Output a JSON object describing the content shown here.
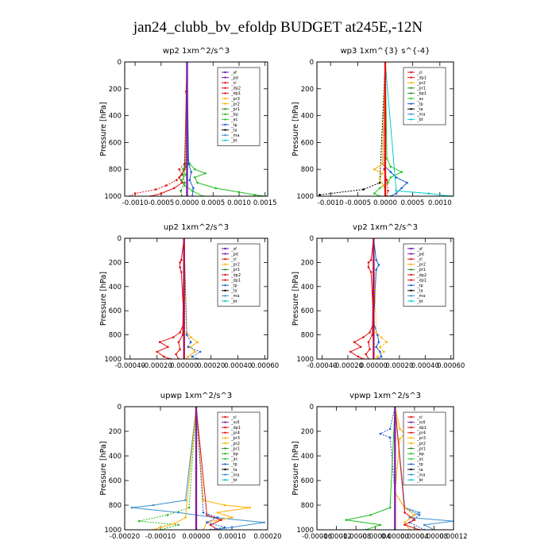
{
  "title": "jan24_clubb_bv_efoldp  BUDGET at245E,-12N",
  "colors": {
    "_sf": "#6a0dad",
    "_pd": "#7a1fa2",
    "_cl": "#e01010",
    "_dp2": "#e01010",
    "_dp1": "#e01010",
    "_pr3": "#ffb000",
    "_pr2": "#ffb000",
    "_pr1": "#2e8b2e",
    "_bp": "#22bb22",
    "_ac": "#22cc22",
    "_tp": "#1f5fd0",
    "_ta": "#000000",
    "_ma": "#3a8fd0",
    "_bt": "#00cccc",
    "_mfl": "#7a1fa2",
    "_pr4": "#e01010",
    "_bp1": "#2e8b2e",
    "_dp": "#e01010",
    "_dpf": "#e01010"
  },
  "chart_data": [
    {
      "type": "line",
      "title": "wp2   1xm^2/s^3",
      "ylabel": "Pressure  [hPa]",
      "xlim": [
        -0.0012,
        0.00155
      ],
      "ylim": [
        1000,
        0
      ],
      "xticks": [
        -0.001,
        -0.0005,
        0.0,
        0.0005,
        0.001,
        0.0015
      ],
      "xtick_labels": [
        "-0.0010",
        "-0.0005",
        "0.0000",
        "0.0005",
        "0.0010",
        "0.0015"
      ],
      "yticks": [
        0,
        200,
        400,
        600,
        800,
        1000
      ],
      "legend": [
        "_sf",
        "_pd",
        "_cl",
        "_dp2",
        "_dp1",
        "_pr3",
        "_pr2",
        "_pr1",
        "_bp",
        "_ac",
        "_tp",
        "_ta",
        "_ma",
        "_bt"
      ],
      "series": [
        {
          "name": "_bp",
          "pressure": [
            0,
            700,
            760,
            800,
            830,
            860,
            900,
            940,
            970,
            990,
            1000
          ],
          "values": [
            0,
            0,
            5e-05,
            0.00015,
            0.00035,
            0.00015,
            0.0002,
            0.00055,
            0.001,
            0.0013,
            0.0015
          ]
        },
        {
          "name": "_ac",
          "pressure": [
            0,
            740,
            800,
            840,
            880,
            920,
            960,
            1000
          ],
          "values": [
            0,
            0,
            -8e-05,
            -3e-05,
            -0.0001,
            -5e-05,
            0.0001,
            0.0003
          ]
        },
        {
          "name": "_dp1",
          "pressure": [
            0,
            220,
            700,
            760,
            800,
            840,
            880,
            920,
            950,
            980,
            1000
          ],
          "values": [
            0,
            -2e-05,
            0,
            -5e-05,
            -0.00015,
            -0.0001,
            -0.0002,
            -0.0004,
            -0.0006,
            -0.001,
            -0.0011
          ]
        },
        {
          "name": "_dp2",
          "pressure": [
            0,
            800,
            860,
            900,
            940,
            980,
            1000
          ],
          "values": [
            0,
            -5e-05,
            -0.00015,
            -0.0001,
            -0.00025,
            -0.0005,
            -0.0007
          ]
        },
        {
          "name": "_tp",
          "pressure": [
            0,
            760,
            820,
            880,
            940,
            1000
          ],
          "values": [
            0,
            3e-05,
            8e-05,
            5e-05,
            0.00012,
            0.0001
          ]
        },
        {
          "name": "_pr1",
          "pressure": [
            0,
            780,
            840,
            900,
            960,
            1000
          ],
          "values": [
            0,
            -3e-05,
            -8e-05,
            -5e-05,
            -0.00012,
            -0.0001
          ]
        },
        {
          "name": "_sf",
          "pressure": [
            0,
            500,
            1000
          ],
          "values": [
            0,
            0,
            0
          ]
        },
        {
          "name": "_pd",
          "pressure": [
            0,
            500,
            1000
          ],
          "values": [
            0,
            0,
            0
          ]
        }
      ]
    },
    {
      "type": "line",
      "title": "wp3   1xm^{3} s^{-4}",
      "ylabel": "Pressure  [hPa]",
      "xlim": [
        -0.00125,
        0.00125
      ],
      "ylim": [
        1000,
        0
      ],
      "xticks": [
        -0.001,
        -0.0005,
        0.0,
        0.0005,
        0.001
      ],
      "xtick_labels": [
        "-0.0010",
        "-0.0005",
        "0.0000",
        "0.0005",
        "0.0010"
      ],
      "yticks": [
        0,
        200,
        400,
        600,
        800,
        1000
      ],
      "legend": [
        "_cl",
        "_dp1",
        "_pr2",
        "_pr1",
        "_bp1",
        "_ac",
        "_tp",
        "_ta",
        "_ma",
        "_bt"
      ],
      "series": [
        {
          "name": "_ac",
          "pressure": [
            0,
            720,
            780,
            820,
            860,
            900,
            940,
            980,
            1000
          ],
          "values": [
            0,
            3e-05,
            0.0001,
            0.0003,
            0.0001,
            5e-05,
            -0.0001,
            -0.0002,
            -0.0001
          ]
        },
        {
          "name": "_tp",
          "pressure": [
            0,
            760,
            820,
            860,
            900,
            940,
            980,
            1000
          ],
          "values": [
            0,
            -5e-05,
            0.0001,
            0.0002,
            0.0004,
            0.0003,
            0.0002,
            0.0001
          ]
        },
        {
          "name": "_ta",
          "pressure": [
            0,
            900,
            950,
            990,
            1000
          ],
          "values": [
            0,
            -0.0001,
            -0.0004,
            -0.0012,
            -0.0012
          ]
        },
        {
          "name": "_pr2",
          "pressure": [
            0,
            760,
            800,
            830,
            870,
            920,
            1000
          ],
          "values": [
            0,
            -5e-05,
            -0.0002,
            -5e-05,
            -0.0001,
            -3e-05,
            2e-05
          ]
        },
        {
          "name": "_bt",
          "pressure": [
            0,
            960,
            980,
            1000
          ],
          "values": [
            0,
            0.0002,
            0.0008,
            0.0012
          ]
        },
        {
          "name": "_dp1",
          "pressure": [
            0,
            800,
            880,
            960,
            1000
          ],
          "values": [
            0,
            -2e-05,
            3e-05,
            5e-05,
            3e-05
          ]
        },
        {
          "name": "_cl",
          "pressure": [
            0,
            500,
            1000
          ],
          "values": [
            0,
            0,
            0
          ]
        }
      ]
    },
    {
      "type": "line",
      "title": "up2   1xm^2/s^3",
      "ylabel": "Pressure  [hPa]",
      "xlim": [
        -0.00044,
        0.00062
      ],
      "ylim": [
        1000,
        0
      ],
      "xticks": [
        -0.0004,
        -0.0002,
        0.0,
        0.0002,
        0.0004,
        0.0006
      ],
      "xtick_labels": [
        "-0.00040",
        "-0.00020",
        "0.00000",
        "0.00020",
        "0.00040",
        "0.00060"
      ],
      "yticks": [
        0,
        200,
        400,
        600,
        800,
        1000
      ],
      "legend": [
        "_sf",
        "_pd",
        "_cl",
        "_pr2",
        "_pr1",
        "_dp2",
        "_dp1",
        "_tp",
        "_ta",
        "_ma",
        "_bt"
      ],
      "series": [
        {
          "name": "_dp1",
          "pressure": [
            0,
            180,
            200,
            240,
            280,
            700,
            780,
            820,
            860,
            900,
            940,
            980,
            1000
          ],
          "values": [
            0,
            -2e-05,
            -3e-05,
            -3e-05,
            -2e-05,
            0,
            -3e-05,
            -8e-05,
            -0.00018,
            -0.00012,
            -0.0002,
            -0.00015,
            -0.0001
          ]
        },
        {
          "name": "_pr2",
          "pressure": [
            0,
            780,
            820,
            860,
            900,
            940,
            980,
            1000
          ],
          "values": [
            0,
            2e-05,
            5e-05,
            0.0001,
            5e-05,
            8e-05,
            3e-05,
            2e-05
          ]
        },
        {
          "name": "_tp",
          "pressure": [
            0,
            800,
            860,
            900,
            940,
            980,
            1000
          ],
          "values": [
            0,
            2e-05,
            5e-05,
            3e-05,
            0.00012,
            6e-05,
            0.0001
          ]
        },
        {
          "name": "_dp2",
          "pressure": [
            0,
            800,
            860,
            920,
            960,
            1000
          ],
          "values": [
            0,
            -1e-05,
            -4e-05,
            -3e-05,
            -6e-05,
            -4e-05
          ]
        },
        {
          "name": "_sf",
          "pressure": [
            0,
            500,
            1000
          ],
          "values": [
            0,
            0,
            0
          ]
        },
        {
          "name": "_cl",
          "pressure": [
            0,
            500,
            1000
          ],
          "values": [
            0,
            0,
            0
          ]
        }
      ]
    },
    {
      "type": "line",
      "title": "vp2   1xm^2/s^3",
      "ylabel": "Pressure  [hPa]",
      "xlim": [
        -0.00044,
        0.00062
      ],
      "ylim": [
        1000,
        0
      ],
      "xticks": [
        -0.0004,
        -0.0002,
        0.0,
        0.0002,
        0.0004,
        0.0006
      ],
      "xtick_labels": [
        "-0.00040",
        "-0.00020",
        "0.00000",
        "0.00020",
        "0.00040",
        "0.00060"
      ],
      "yticks": [
        0,
        200,
        400,
        600,
        800,
        1000
      ],
      "legend": [
        "_sf",
        "_pd",
        "_cl",
        "_pr2",
        "_pr1",
        "_dp2",
        "_dp1",
        "_tp",
        "_ta",
        "_ma",
        "_bt"
      ],
      "series": [
        {
          "name": "_dp1",
          "pressure": [
            0,
            180,
            200,
            240,
            280,
            700,
            780,
            820,
            860,
            900,
            940,
            980,
            1000
          ],
          "values": [
            0,
            -2e-05,
            -4e-05,
            -4e-05,
            -2e-05,
            0,
            -3e-05,
            -8e-05,
            -0.00015,
            -0.0001,
            -0.00018,
            -0.00012,
            -8e-05
          ]
        },
        {
          "name": "_tp",
          "pressure": [
            0,
            180,
            220,
            260,
            700,
            800,
            860,
            900,
            940,
            980,
            1000
          ],
          "values": [
            0,
            2e-05,
            4e-05,
            2e-05,
            0,
            3e-05,
            4e-05,
            2e-05,
            5e-05,
            6e-05,
            3e-05
          ]
        },
        {
          "name": "_pr2",
          "pressure": [
            0,
            780,
            820,
            860,
            900,
            940,
            980,
            1000
          ],
          "values": [
            0,
            2e-05,
            6e-05,
            0.0001,
            5e-05,
            8e-05,
            3e-05,
            2e-05
          ]
        },
        {
          "name": "_dp2",
          "pressure": [
            0,
            800,
            860,
            920,
            960,
            1000
          ],
          "values": [
            0,
            -1e-05,
            -4e-05,
            -3e-05,
            -6e-05,
            -4e-05
          ]
        },
        {
          "name": "_sf",
          "pressure": [
            0,
            500,
            1000
          ],
          "values": [
            0,
            0,
            0
          ]
        },
        {
          "name": "_cl",
          "pressure": [
            0,
            500,
            1000
          ],
          "values": [
            0,
            0,
            0
          ]
        }
      ]
    },
    {
      "type": "line",
      "title": "upwp   1xm^2/s^3",
      "ylabel": "Pressure  [hPa]",
      "xlim": [
        -0.0002,
        0.0002
      ],
      "ylim": [
        1000,
        0
      ],
      "xticks": [
        -0.0002,
        -0.0001,
        0.0,
        0.0001,
        0.0002
      ],
      "xtick_labels": [
        "-0.00020",
        "-0.00010",
        "0.00000",
        "0.00010",
        "0.00020"
      ],
      "yticks": [
        0,
        200,
        400,
        600,
        800,
        1000
      ],
      "legend": [
        "_cl",
        "_mfl",
        "_dp1",
        "_pr4",
        "_pr3",
        "_pr2",
        "_pr1",
        "_bp",
        "_ac",
        "_tp",
        "_ta",
        "_ma",
        "_bt"
      ],
      "series": [
        {
          "name": "_ma",
          "pressure": [
            0,
            760,
            800,
            820,
            860,
            900,
            940,
            980,
            1000
          ],
          "values": [
            0,
            -3e-05,
            -0.00012,
            -0.00018,
            -5e-05,
            5e-05,
            0.00019,
            0.0001,
            5e-05
          ]
        },
        {
          "name": "_pr2",
          "pressure": [
            0,
            760,
            800,
            820,
            860,
            900,
            940,
            1000
          ],
          "values": [
            0,
            2e-05,
            8e-05,
            0.00015,
            6e-05,
            0.0001,
            3e-05,
            2e-05
          ]
        },
        {
          "name": "_bp",
          "pressure": [
            0,
            820,
            880,
            930,
            960,
            1000
          ],
          "values": [
            0,
            -2e-05,
            -8e-05,
            -0.00016,
            -5e-05,
            -0.0001
          ]
        },
        {
          "name": "_pr3",
          "pressure": [
            0,
            900,
            950,
            980,
            1000
          ],
          "values": [
            0,
            -3e-05,
            -6e-05,
            -0.0001,
            -0.00012
          ]
        },
        {
          "name": "_dp1",
          "pressure": [
            0,
            880,
            920,
            960,
            1000
          ],
          "values": [
            0,
            3e-05,
            7e-05,
            4e-05,
            6e-05
          ]
        },
        {
          "name": "_tp",
          "pressure": [
            0,
            860,
            900,
            940,
            980,
            1000
          ],
          "values": [
            0,
            2e-05,
            6e-05,
            3e-05,
            8e-05,
            4e-05
          ]
        },
        {
          "name": "_cl",
          "pressure": [
            0,
            500,
            1000
          ],
          "values": [
            0,
            0,
            0
          ]
        },
        {
          "name": "_mfl",
          "pressure": [
            0,
            500,
            1000
          ],
          "values": [
            0,
            0,
            0
          ]
        }
      ]
    },
    {
      "type": "line",
      "title": "vpwp   1xm^2/s^3",
      "ylabel": "Pressure  [hPa]",
      "xlim": [
        -0.00016,
        0.00012
      ],
      "ylim": [
        1000,
        0
      ],
      "xticks": [
        -0.00016,
        -0.00012,
        -8e-05,
        -4e-05,
        0.0,
        4e-05,
        8e-05,
        0.00012
      ],
      "xtick_labels": [
        "-0.00016",
        "-0.00012",
        "-0.00008",
        "-0.00004",
        "0.00000",
        "0.00004",
        "0.00008",
        "0.00012"
      ],
      "yticks": [
        0,
        200,
        400,
        600,
        800,
        1000
      ],
      "legend": [
        "_cl",
        "_mfl",
        "_dp1",
        "_pr4",
        "_pr3",
        "_pr2",
        "_pr1",
        "_bp",
        "_ac",
        "_tp",
        "_ta",
        "_ma",
        "_bt"
      ],
      "series": [
        {
          "name": "_bp",
          "pressure": [
            0,
            820,
            880,
            920,
            960,
            1000
          ],
          "values": [
            0,
            -1e-05,
            -5e-05,
            -0.0001,
            -3e-05,
            -6e-05
          ]
        },
        {
          "name": "_ma",
          "pressure": [
            0,
            820,
            860,
            900,
            930,
            960,
            1000
          ],
          "values": [
            0,
            2e-05,
            5e-05,
            3e-05,
            0.00012,
            6e-05,
            8e-05
          ]
        },
        {
          "name": "_tp",
          "pressure": [
            0,
            180,
            220,
            250,
            700,
            820,
            880,
            940,
            1000
          ],
          "values": [
            0,
            -1e-05,
            -3e-05,
            -1e-05,
            0,
            2e-05,
            5e-05,
            3e-05,
            6e-05
          ]
        },
        {
          "name": "_pr2",
          "pressure": [
            0,
            180,
            220,
            260,
            700,
            820,
            880,
            940,
            1000
          ],
          "values": [
            0,
            1e-05,
            2e-05,
            1e-05,
            0,
            2e-05,
            4e-05,
            2e-05,
            3e-05
          ]
        },
        {
          "name": "_dp1",
          "pressure": [
            0,
            860,
            920,
            960,
            1000
          ],
          "values": [
            0,
            2e-05,
            4e-05,
            2e-05,
            5e-05
          ]
        },
        {
          "name": "_cl",
          "pressure": [
            0,
            500,
            1000
          ],
          "values": [
            0,
            0,
            0
          ]
        },
        {
          "name": "_mfl",
          "pressure": [
            0,
            500,
            1000
          ],
          "values": [
            0,
            0,
            0
          ]
        }
      ]
    }
  ]
}
